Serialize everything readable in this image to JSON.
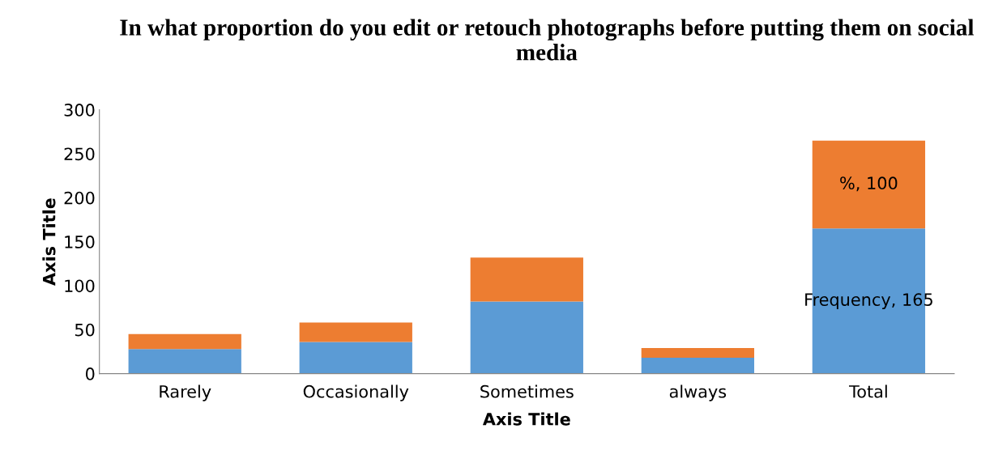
{
  "chart_data": {
    "type": "bar",
    "stacked": true,
    "title": "In what proportion do you edit or retouch photographs before putting them on social media",
    "xlabel": "Axis Title",
    "ylabel": "Axis Title",
    "categories": [
      "Rarely",
      "Occasionally",
      "Sometimes",
      "always",
      "Total"
    ],
    "series": [
      {
        "color": "#5b9bd5",
        "values": [
          28,
          36,
          82,
          18,
          165
        ],
        "value_labels": [
          null,
          null,
          null,
          null,
          "Frequency, 165"
        ]
      },
      {
        "color": "#ed7d31",
        "values": [
          17,
          22,
          50,
          11,
          100
        ],
        "value_labels": [
          null,
          null,
          null,
          null,
          "%, 100"
        ]
      }
    ],
    "ylim": [
      0,
      300
    ],
    "yticks": [
      0,
      50,
      100,
      150,
      200,
      250,
      300
    ],
    "grid": false,
    "legend": false
  }
}
